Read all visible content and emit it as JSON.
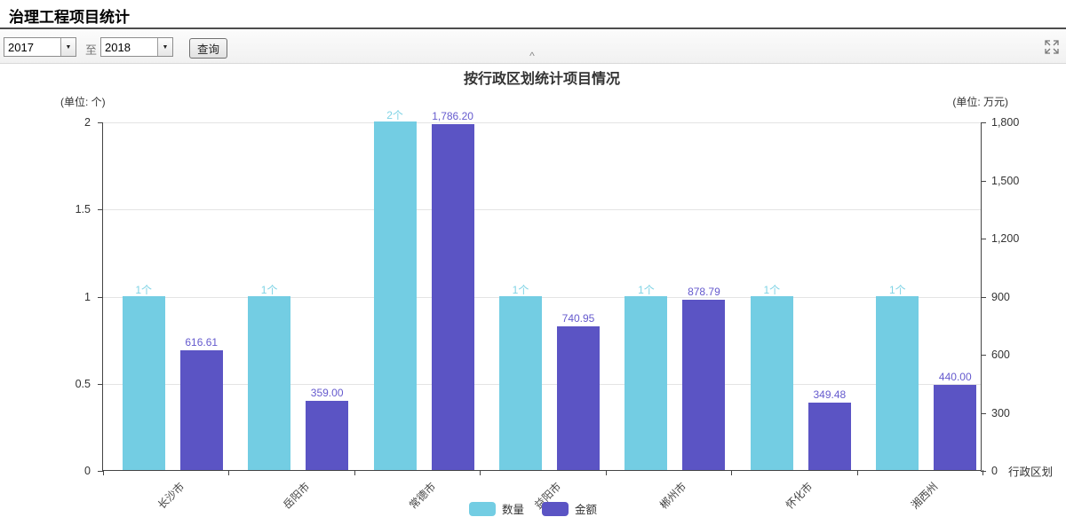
{
  "header": {
    "title": "治理工程项目统计"
  },
  "toolbar": {
    "year_from": "2017",
    "to_label": "至",
    "year_to": "2018",
    "query_button": "查询",
    "collapse_glyph": "^"
  },
  "chart_data": {
    "type": "bar",
    "title": "按行政区划统计项目情况",
    "x_axis_name": "行政区划",
    "categories": [
      "长沙市",
      "岳阳市",
      "常德市",
      "益阳市",
      "郴州市",
      "怀化市",
      "湘西州"
    ],
    "left_axis": {
      "unit": "(单位: 个)",
      "max": 2,
      "tick_values": [
        2,
        1.5,
        1,
        0.5,
        0
      ],
      "tick_labels": [
        "2",
        "1.5",
        "1",
        "0.5",
        "0"
      ]
    },
    "right_axis": {
      "unit": "(单位: 万元)",
      "max": 1800,
      "tick_values": [
        1800,
        1500,
        1200,
        900,
        600,
        300,
        0
      ],
      "tick_labels": [
        "1,800",
        "1,500",
        "1,200",
        "900",
        "600",
        "300",
        "0"
      ]
    },
    "grid_values": [
      0.5,
      1,
      1.5,
      2
    ],
    "series": [
      {
        "name": "数量",
        "axis": "left",
        "color": "#73cde3",
        "label_color": "#7fd3e5",
        "values": [
          1,
          1,
          2,
          1,
          1,
          1,
          1
        ],
        "value_labels": [
          "1个",
          "1个",
          "2个",
          "1个",
          "1个",
          "1个",
          "1个"
        ]
      },
      {
        "name": "金额",
        "axis": "right",
        "color": "#5b54c4",
        "label_color": "#655ace",
        "values": [
          616.61,
          359.0,
          1786.2,
          740.95,
          878.79,
          349.48,
          440.0
        ],
        "value_labels": [
          "616.61",
          "359.00",
          "1,786.20",
          "740.95",
          "878.79",
          "349.48",
          "440.00"
        ]
      }
    ],
    "legend": [
      {
        "label": "数量",
        "color": "#73cde3"
      },
      {
        "label": "金额",
        "color": "#5b54c4"
      }
    ],
    "legend_position": "bottom"
  }
}
